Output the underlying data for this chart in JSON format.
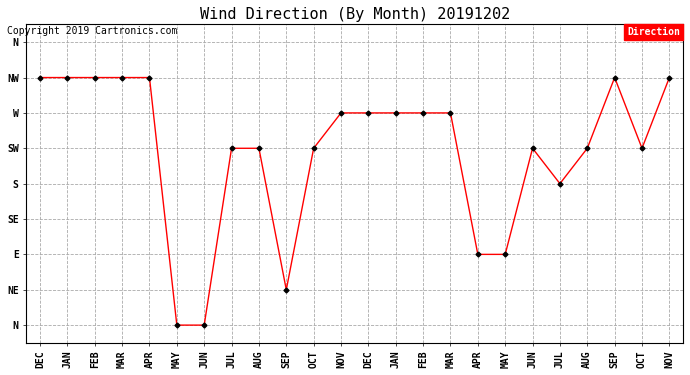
{
  "title": "Wind Direction (By Month) 20191202",
  "copyright": "Copyright 2019 Cartronics.com",
  "legend_label": "Direction",
  "legend_color": "#ff0000",
  "legend_text_color": "#ffffff",
  "x_labels": [
    "DEC",
    "JAN",
    "FEB",
    "MAR",
    "APR",
    "MAY",
    "JUN",
    "JUL",
    "AUG",
    "SEP",
    "OCT",
    "NOV",
    "DEC",
    "JAN",
    "FEB",
    "MAR",
    "APR",
    "MAY",
    "JUN",
    "JUL",
    "AUG",
    "SEP",
    "OCT",
    "NOV"
  ],
  "y_ticks": [
    0,
    1,
    2,
    3,
    4,
    5,
    6,
    7,
    8
  ],
  "y_labels": [
    "N",
    "NE",
    "E",
    "SE",
    "S",
    "SW",
    "W",
    "NW",
    "N"
  ],
  "data_y": [
    7,
    7,
    7,
    7,
    7,
    0,
    0,
    5,
    5,
    1,
    5,
    6,
    6,
    6,
    6,
    6,
    2,
    2,
    5,
    4,
    5,
    7,
    5,
    7
  ],
  "line_color": "#ff0000",
  "marker_color": "#000000",
  "grid_color": "#aaaaaa",
  "background_color": "#ffffff",
  "title_fontsize": 11,
  "axis_label_fontsize": 7,
  "copyright_fontsize": 7,
  "legend_fontsize": 7
}
